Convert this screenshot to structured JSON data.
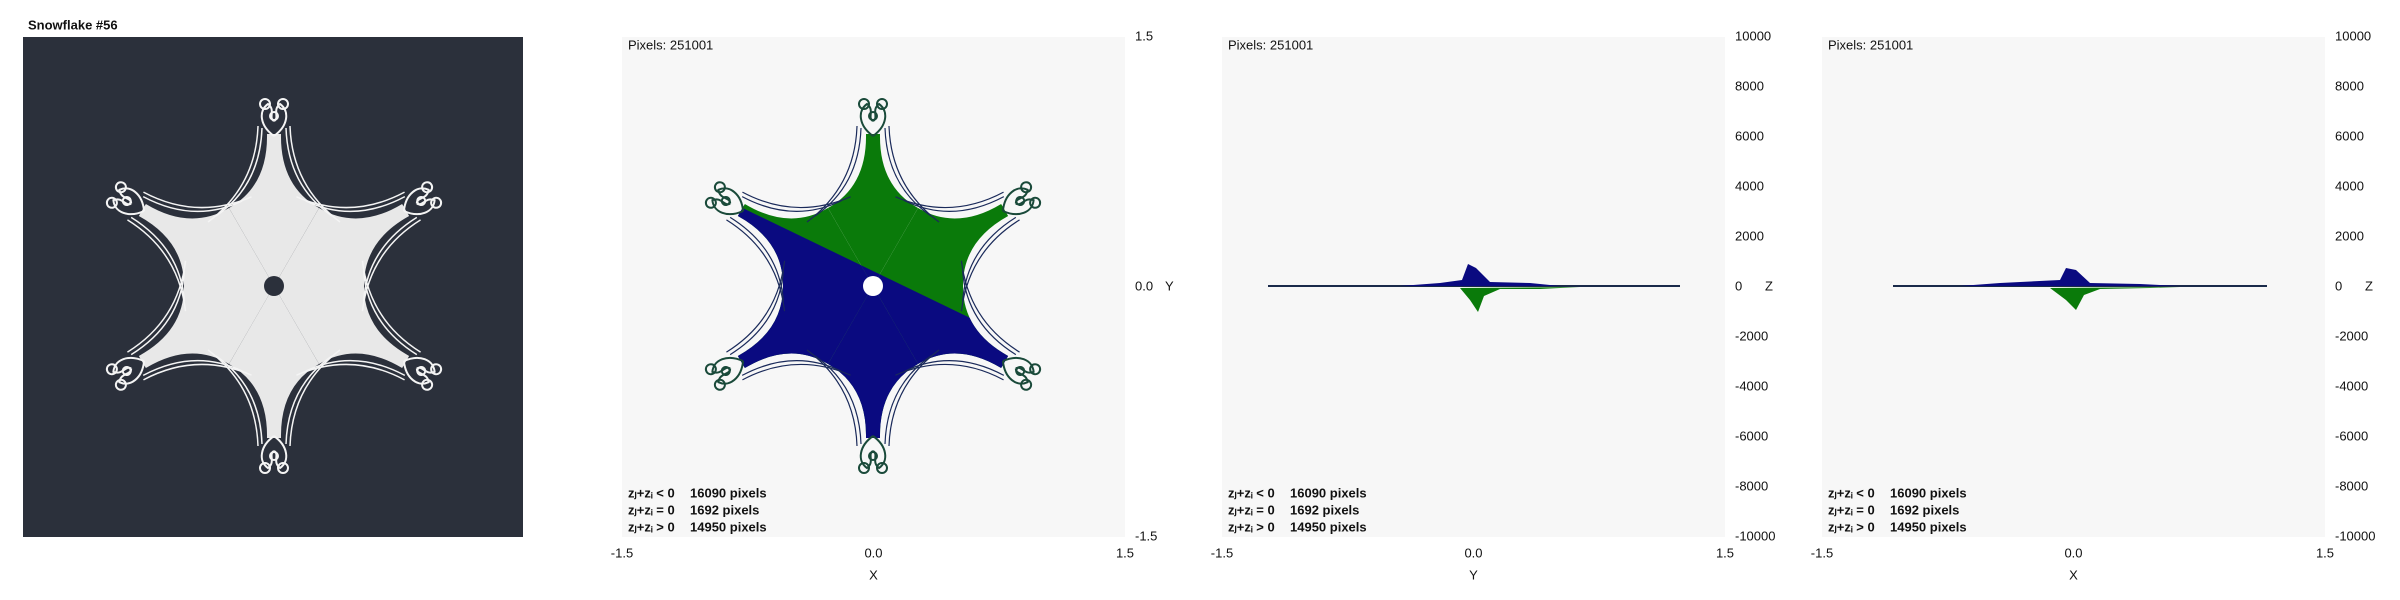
{
  "panels": [
    {
      "title": "Snowflake #56"
    },
    {
      "pixels": "Pixels: 251001",
      "right_ticks": [
        "1.5",
        "0.0",
        "-1.5"
      ],
      "right_axis_label": "Y",
      "bottom_ticks": [
        "-1.5",
        "0.0",
        "1.5"
      ],
      "bottom_axis_label": "X",
      "legend": [
        {
          "label": "zⱼ+zᵢ < 0",
          "count": "16090 pixels"
        },
        {
          "label": "zⱼ+zᵢ = 0",
          "count": "1692 pixels"
        },
        {
          "label": "zⱼ+zᵢ > 0",
          "count": "14950 pixels"
        }
      ]
    },
    {
      "pixels": "Pixels: 251001",
      "right_ticks": [
        "10000",
        "8000",
        "6000",
        "4000",
        "2000",
        "0",
        "-2000",
        "-4000",
        "-6000",
        "-8000",
        "-10000"
      ],
      "right_axis_label": "Z",
      "bottom_ticks": [
        "-1.5",
        "0.0",
        "1.5"
      ],
      "bottom_axis_label": "Y",
      "legend": [
        {
          "label": "zⱼ+zᵢ < 0",
          "count": "16090 pixels"
        },
        {
          "label": "zⱼ+zᵢ = 0",
          "count": "1692 pixels"
        },
        {
          "label": "zⱼ+zᵢ > 0",
          "count": "14950 pixels"
        }
      ]
    },
    {
      "pixels": "Pixels: 251001",
      "right_ticks": [
        "10000",
        "8000",
        "6000",
        "4000",
        "2000",
        "0",
        "-2000",
        "-4000",
        "-6000",
        "-8000",
        "-10000"
      ],
      "right_axis_label": "Z",
      "bottom_ticks": [
        "-1.5",
        "0.0",
        "1.5"
      ],
      "bottom_axis_label": "X",
      "legend": [
        {
          "label": "zⱼ+zᵢ < 0",
          "count": "16090 pixels"
        },
        {
          "label": "zⱼ+zᵢ = 0",
          "count": "1692 pixels"
        },
        {
          "label": "zⱼ+zᵢ > 0",
          "count": "14950 pixels"
        }
      ]
    }
  ]
}
